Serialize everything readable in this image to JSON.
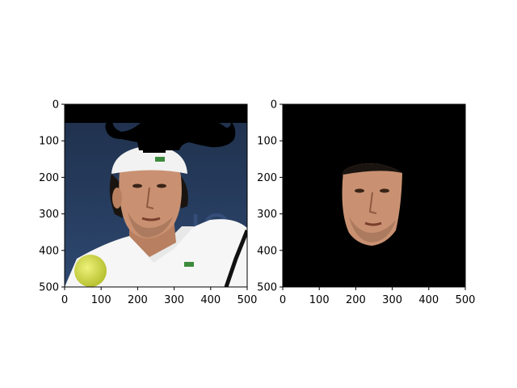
{
  "figure": {
    "background": "#ffffff",
    "axis_color": "#000000"
  },
  "chart_data": [
    {
      "type": "image",
      "title": "",
      "xlabel": "",
      "ylabel": "",
      "xlim": [
        0,
        500
      ],
      "ylim": [
        500,
        0
      ],
      "xticks": [
        0,
        100,
        200,
        300,
        400,
        500
      ],
      "yticks": [
        0,
        100,
        200,
        300,
        400,
        500
      ],
      "grid": false,
      "content": "photo of man in white cap with drawn black mustache overlay above head and tennis ball in lower left",
      "image_colors": {
        "background_top": "#1e2f4a",
        "background_bottom": "#2e4870",
        "cap": "#f2f2f2",
        "shirt": "#f6f6f6",
        "skin": "#c99172",
        "hair": "#1a1410",
        "mustache": "#000000",
        "ball": "#d6e04a"
      }
    },
    {
      "type": "image",
      "title": "",
      "xlabel": "",
      "ylabel": "",
      "xlim": [
        0,
        500
      ],
      "ylim": [
        500,
        0
      ],
      "xticks": [
        0,
        100,
        200,
        300,
        400,
        500
      ],
      "yticks": [
        0,
        100,
        200,
        300,
        400,
        500
      ],
      "grid": false,
      "content": "segmented face on black background",
      "image_colors": {
        "background": "#000000",
        "skin": "#c99172",
        "hair": "#1a1410"
      }
    }
  ]
}
